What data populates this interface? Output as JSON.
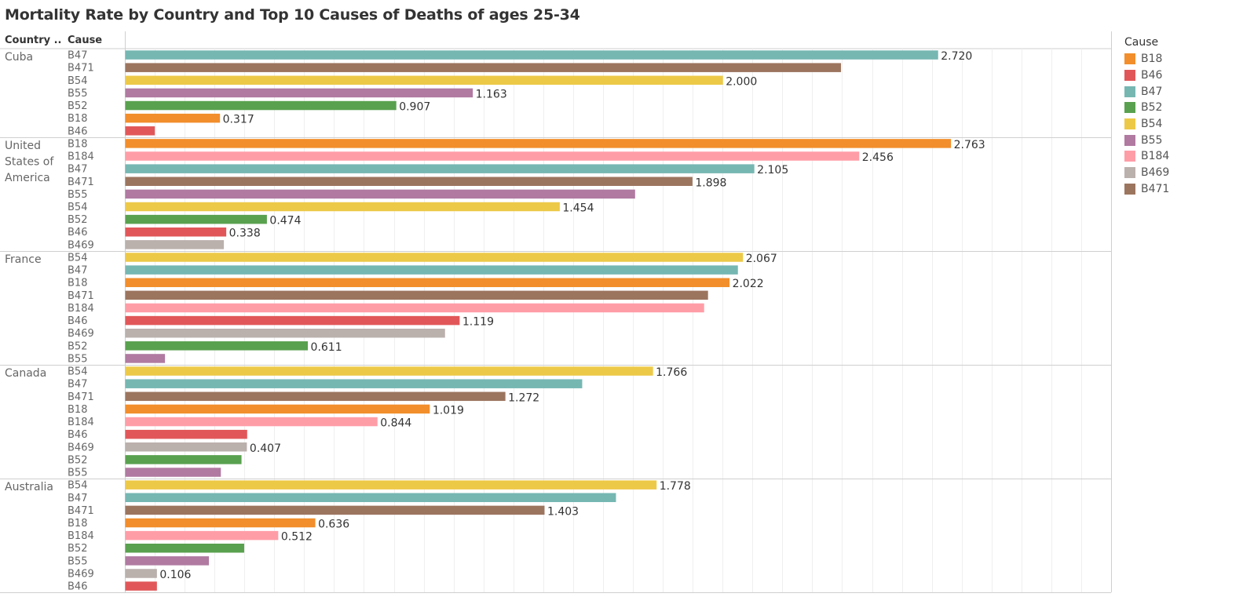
{
  "chart_data": {
    "type": "bar",
    "orientation": "horizontal",
    "title": "Mortality Rate by Country and Top 10 Causes of Deaths of ages 25-34",
    "row_headers": {
      "country": "Country ..",
      "cause": "Cause"
    },
    "xlim": [
      0,
      3.3
    ],
    "grid": true,
    "legend": {
      "title": "Cause",
      "placement": "right",
      "items": [
        "B18",
        "B46",
        "B47",
        "B52",
        "B54",
        "B55",
        "B184",
        "B469",
        "B471"
      ]
    },
    "colors": {
      "B18": "#f28e2b",
      "B46": "#e15759",
      "B47": "#76b7b2",
      "B52": "#59a14f",
      "B54": "#edc948",
      "B55": "#b07aa1",
      "B184": "#ff9da7",
      "B469": "#bab0ac",
      "B471": "#9c755f"
    },
    "groups": [
      {
        "country": [
          "Cuba"
        ],
        "bars": [
          {
            "cause": "B47",
            "value": 2.72,
            "label": "2.720"
          },
          {
            "cause": "B471",
            "value": 2.395,
            "label": ""
          },
          {
            "cause": "B54",
            "value": 2.0,
            "label": "2.000"
          },
          {
            "cause": "B55",
            "value": 1.163,
            "label": "1.163"
          },
          {
            "cause": "B52",
            "value": 0.907,
            "label": "0.907"
          },
          {
            "cause": "B18",
            "value": 0.317,
            "label": "0.317"
          },
          {
            "cause": "B46",
            "value": 0.099,
            "label": ""
          }
        ]
      },
      {
        "country": [
          "United",
          "States of",
          "America"
        ],
        "bars": [
          {
            "cause": "B18",
            "value": 2.763,
            "label": "2.763"
          },
          {
            "cause": "B184",
            "value": 2.456,
            "label": "2.456"
          },
          {
            "cause": "B47",
            "value": 2.105,
            "label": "2.105"
          },
          {
            "cause": "B471",
            "value": 1.898,
            "label": "1.898"
          },
          {
            "cause": "B55",
            "value": 1.706,
            "label": ""
          },
          {
            "cause": "B54",
            "value": 1.454,
            "label": "1.454"
          },
          {
            "cause": "B52",
            "value": 0.474,
            "label": "0.474"
          },
          {
            "cause": "B46",
            "value": 0.338,
            "label": "0.338"
          },
          {
            "cause": "B469",
            "value": 0.33,
            "label": ""
          }
        ]
      },
      {
        "country": [
          "France"
        ],
        "bars": [
          {
            "cause": "B54",
            "value": 2.067,
            "label": "2.067"
          },
          {
            "cause": "B47",
            "value": 2.05,
            "label": ""
          },
          {
            "cause": "B18",
            "value": 2.022,
            "label": "2.022"
          },
          {
            "cause": "B471",
            "value": 1.95,
            "label": ""
          },
          {
            "cause": "B184",
            "value": 1.937,
            "label": ""
          },
          {
            "cause": "B46",
            "value": 1.119,
            "label": "1.119"
          },
          {
            "cause": "B469",
            "value": 1.07,
            "label": ""
          },
          {
            "cause": "B52",
            "value": 0.611,
            "label": "0.611"
          },
          {
            "cause": "B55",
            "value": 0.133,
            "label": ""
          }
        ]
      },
      {
        "country": [
          "Canada"
        ],
        "bars": [
          {
            "cause": "B54",
            "value": 1.766,
            "label": "1.766"
          },
          {
            "cause": "B47",
            "value": 1.529,
            "label": ""
          },
          {
            "cause": "B471",
            "value": 1.272,
            "label": "1.272"
          },
          {
            "cause": "B18",
            "value": 1.019,
            "label": "1.019"
          },
          {
            "cause": "B184",
            "value": 0.844,
            "label": "0.844"
          },
          {
            "cause": "B46",
            "value": 0.408,
            "label": ""
          },
          {
            "cause": "B469",
            "value": 0.407,
            "label": "0.407"
          },
          {
            "cause": "B52",
            "value": 0.389,
            "label": ""
          },
          {
            "cause": "B55",
            "value": 0.32,
            "label": ""
          }
        ]
      },
      {
        "country": [
          "Australia"
        ],
        "bars": [
          {
            "cause": "B54",
            "value": 1.778,
            "label": "1.778"
          },
          {
            "cause": "B47",
            "value": 1.642,
            "label": ""
          },
          {
            "cause": "B471",
            "value": 1.403,
            "label": "1.403"
          },
          {
            "cause": "B18",
            "value": 0.636,
            "label": "0.636"
          },
          {
            "cause": "B184",
            "value": 0.512,
            "label": "0.512"
          },
          {
            "cause": "B52",
            "value": 0.398,
            "label": ""
          },
          {
            "cause": "B55",
            "value": 0.28,
            "label": ""
          },
          {
            "cause": "B469",
            "value": 0.106,
            "label": "0.106"
          },
          {
            "cause": "B46",
            "value": 0.106,
            "label": ""
          }
        ]
      }
    ]
  }
}
